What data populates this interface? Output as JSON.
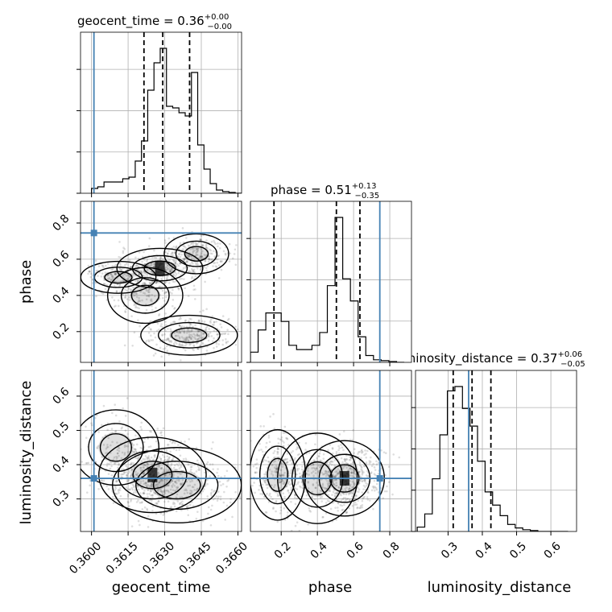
{
  "chart_data": {
    "type": "corner",
    "parameters": [
      "geocent_time",
      "phase",
      "luminosity_distance"
    ],
    "axis_labels": {
      "geocent_time": "geocent_time",
      "phase": "phase",
      "luminosity_distance": "luminosity_distance"
    },
    "titles": {
      "geocent_time": {
        "name": "geocent_time",
        "median": "0.36",
        "plus": "+0.00",
        "minus": "−0.00"
      },
      "phase": {
        "name": "phase",
        "median": "0.51",
        "plus": "+0.13",
        "minus": "−0.35"
      },
      "luminosity_distance": {
        "name": "luminosity_distance",
        "median": "0.37",
        "plus": "+0.06",
        "minus": "−0.05"
      }
    },
    "ranges": {
      "geocent_time": [
        0.35955,
        0.36615
      ],
      "phase": [
        0.03,
        0.92
      ],
      "luminosity_distance": [
        0.205,
        0.675
      ]
    },
    "ticks": {
      "geocent_time": {
        "values": [
          0.36,
          0.3615,
          0.363,
          0.3645,
          0.366
        ],
        "labels": [
          "0.3600",
          "0.3615",
          "0.3630",
          "0.3645",
          "0.3660"
        ]
      },
      "phase": {
        "values": [
          0.2,
          0.4,
          0.6,
          0.8
        ],
        "labels": [
          "0.2",
          "0.4",
          "0.6",
          "0.8"
        ]
      },
      "luminosity_distance": {
        "values": [
          0.3,
          0.4,
          0.5,
          0.6
        ],
        "labels": [
          "0.3",
          "0.4",
          "0.5",
          "0.6"
        ]
      }
    },
    "truths": {
      "geocent_time": 0.3601,
      "phase": 0.745,
      "luminosity_distance": 0.36
    },
    "quantiles": {
      "geocent_time": [
        0.36215,
        0.36292,
        0.36402
      ],
      "phase": [
        0.16,
        0.505,
        0.635
      ],
      "luminosity_distance": [
        0.315,
        0.37,
        0.425
      ]
    },
    "histograms": {
      "geocent_time": {
        "edges_range": [
          0.36,
          0.3664
        ],
        "bins": 25,
        "counts": [
          6,
          8,
          14,
          14,
          14,
          18,
          20,
          40,
          65,
          128,
          162,
          180,
          108,
          106,
          100,
          96,
          150,
          60,
          30,
          12,
          4,
          2,
          1,
          0,
          0
        ]
      },
      "phase": {
        "edges_range": [
          0.03,
          0.88
        ],
        "bins": 20,
        "counts": [
          12,
          38,
          58,
          58,
          48,
          20,
          15,
          15,
          20,
          35,
          90,
          170,
          98,
          72,
          30,
          8,
          3,
          2,
          1,
          0
        ]
      },
      "luminosity_distance": {
        "edges_range": [
          0.21,
          0.65
        ],
        "bins": 20,
        "counts": [
          5,
          20,
          60,
          110,
          160,
          165,
          140,
          120,
          80,
          45,
          30,
          18,
          8,
          4,
          2,
          1,
          0,
          0,
          0,
          0
        ]
      }
    },
    "grid": true,
    "color_truth": "#4682b4",
    "color_hist": "#000000"
  }
}
